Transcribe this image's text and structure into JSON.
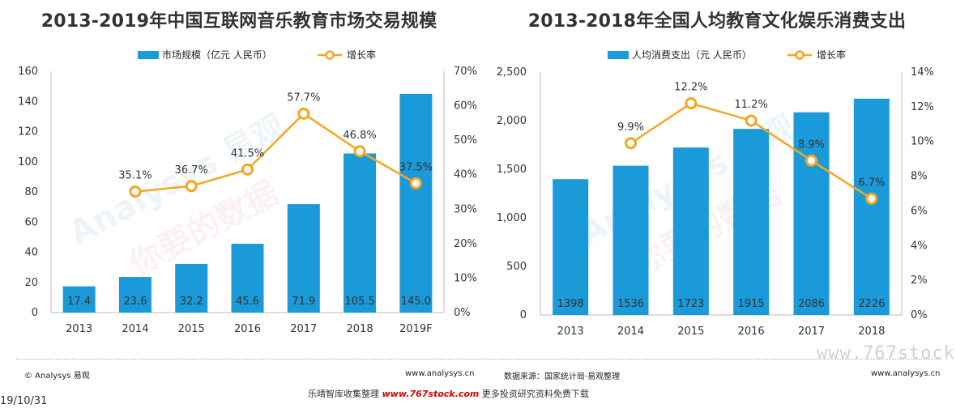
{
  "watermarks": {
    "brand": "Analysys 易观",
    "slogan": "你要的数据"
  },
  "footer": {
    "copyright": "© Analysys 易观",
    "url_left": "www.analysys.cn",
    "source": "数据来源：国家统计局·易观整理",
    "url_right": "www.analysys.cn",
    "date": "19/10/31",
    "promo_before": "乐晴智库收集整理",
    "promo_site": "www.767stock.com",
    "promo_after": "更多投资研究资料免费下载",
    "watermark_site": "www.767stock."
  },
  "colors": {
    "bar": "#1a9ad8",
    "line": "#f5a623",
    "marker_fill": "#ffffff",
    "axis_text": "#333333"
  },
  "chart_data": [
    {
      "type": "bar",
      "title": "2013-2019年中国互联网音乐教育市场交易规模",
      "categories": [
        "2013",
        "2014",
        "2015",
        "2016",
        "2017",
        "2018",
        "2019F"
      ],
      "series": [
        {
          "name": "市场规模（亿元 人民币）",
          "type": "bar",
          "axis": "left",
          "values": [
            17.4,
            23.6,
            32.2,
            45.6,
            71.9,
            105.5,
            145.0
          ],
          "labels": [
            "17.4",
            "23.6",
            "32.2",
            "45.6",
            "71.9",
            "105.5",
            "145.0"
          ]
        },
        {
          "name": "增长率",
          "type": "line",
          "axis": "right",
          "values": [
            null,
            35.1,
            36.7,
            41.5,
            57.7,
            46.8,
            37.5
          ],
          "labels": [
            "",
            "35.1%",
            "36.7%",
            "41.5%",
            "57.7%",
            "46.8%",
            "37.5%"
          ]
        }
      ],
      "ylim_left": [
        0,
        160
      ],
      "yticks_left": [
        "0",
        "20",
        "40",
        "60",
        "80",
        "100",
        "120",
        "140",
        "160"
      ],
      "ylim_right": [
        0,
        70
      ],
      "yticks_right": [
        "0%",
        "10%",
        "20%",
        "30%",
        "40%",
        "50%",
        "60%",
        "70%"
      ],
      "legend": "top-center",
      "grid": false
    },
    {
      "type": "bar",
      "title": "2013-2018年全国人均教育文化娱乐消费支出",
      "categories": [
        "2013",
        "2014",
        "2015",
        "2016",
        "2017",
        "2018"
      ],
      "series": [
        {
          "name": "人均消费支出（元 人民币）",
          "type": "bar",
          "axis": "left",
          "values": [
            1398,
            1536,
            1723,
            1915,
            2086,
            2226
          ],
          "labels": [
            "1398",
            "1536",
            "1723",
            "1915",
            "2086",
            "2226"
          ]
        },
        {
          "name": "增长率",
          "type": "line",
          "axis": "right",
          "values": [
            null,
            9.9,
            12.2,
            11.2,
            8.9,
            6.7
          ],
          "labels": [
            "",
            "9.9%",
            "12.2%",
            "11.2%",
            "8.9%",
            "6.7%"
          ]
        }
      ],
      "ylim_left": [
        0,
        2500
      ],
      "yticks_left": [
        "0",
        "500",
        "1,000",
        "1,500",
        "2,000",
        "2,500"
      ],
      "ylim_right": [
        0,
        14
      ],
      "yticks_right": [
        "0%",
        "2%",
        "4%",
        "6%",
        "8%",
        "10%",
        "12%",
        "14%"
      ],
      "legend": "top-center",
      "grid": false
    }
  ]
}
